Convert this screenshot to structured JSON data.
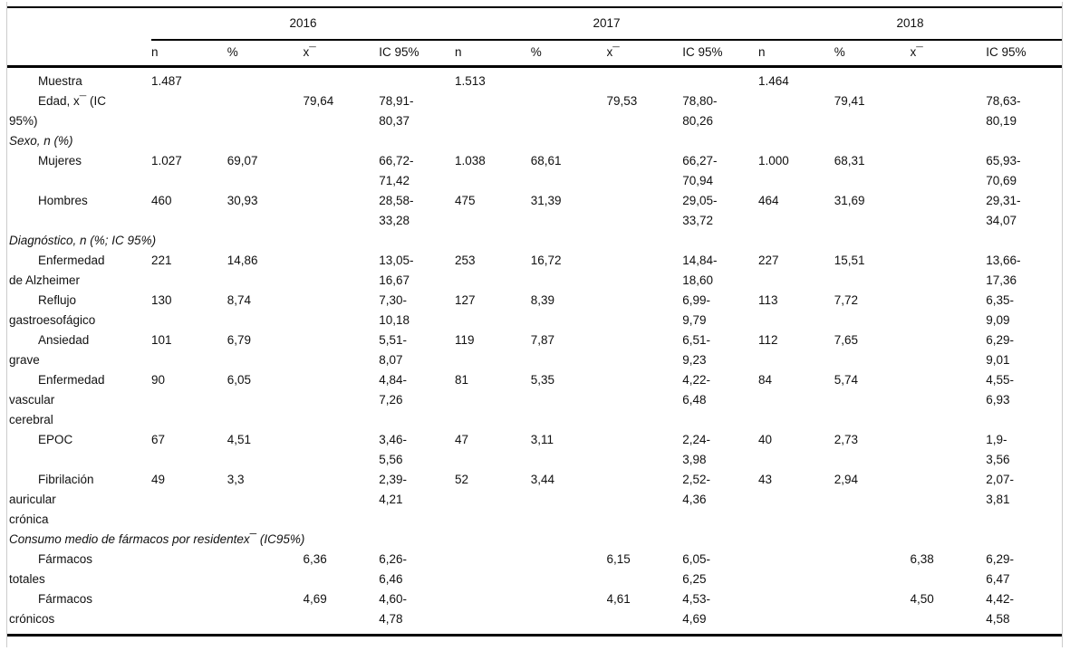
{
  "table": {
    "year_groups": [
      "2016",
      "2017",
      "2018"
    ],
    "sub_columns": [
      "n",
      "%",
      "x¯",
      "IC 95%"
    ],
    "rows": [
      {
        "type": "data",
        "label": "Muestra",
        "cells": [
          "1.487",
          "",
          "",
          "",
          "1.513",
          "",
          "",
          "",
          "1.464",
          "",
          "",
          ""
        ]
      },
      {
        "type": "data",
        "label": "Edad, x¯ (IC\n95%)",
        "cells": [
          "",
          "",
          "79,64",
          "78,91-\n80,37",
          "",
          "",
          "79,53",
          "78,80-\n80,26",
          "",
          "79,41",
          "",
          "78,63-\n80,19"
        ]
      },
      {
        "type": "section",
        "label": "Sexo, n (%)"
      },
      {
        "type": "data",
        "label": "Mujeres",
        "cells": [
          "1.027",
          "69,07",
          "",
          "66,72-\n71,42",
          "1.038",
          "68,61",
          "",
          "66,27-\n70,94",
          "1.000",
          "68,31",
          "",
          "65,93-\n70,69"
        ]
      },
      {
        "type": "data",
        "label": "Hombres",
        "cells": [
          "460",
          "30,93",
          "",
          "28,58-\n33,28",
          "475",
          "31,39",
          "",
          "29,05-\n33,72",
          "464",
          "31,69",
          "",
          "29,31-\n34,07"
        ]
      },
      {
        "type": "section",
        "label": "Diagnóstico, n (%; IC 95%)"
      },
      {
        "type": "data",
        "label": "Enfermedad\nde Alzheimer",
        "cells": [
          "221",
          "14,86",
          "",
          "13,05-\n16,67",
          "253",
          "16,72",
          "",
          "14,84-\n18,60",
          "227",
          "15,51",
          "",
          "13,66-\n17,36"
        ]
      },
      {
        "type": "data",
        "label": "Reflujo\ngastroesofágico",
        "cells": [
          "130",
          "8,74",
          "",
          "7,30-\n10,18",
          "127",
          "8,39",
          "",
          "6,99-\n9,79",
          "113",
          "7,72",
          "",
          "6,35-\n9,09"
        ]
      },
      {
        "type": "data",
        "label": "Ansiedad\ngrave",
        "cells": [
          "101",
          "6,79",
          "",
          "5,51-\n8,07",
          "119",
          "7,87",
          "",
          "6,51-\n9,23",
          "112",
          "7,65",
          "",
          "6,29-\n9,01"
        ]
      },
      {
        "type": "data",
        "label": "Enfermedad\nvascular\ncerebral",
        "cells": [
          "90",
          "6,05",
          "",
          "4,84-\n7,26",
          "81",
          "5,35",
          "",
          "4,22-\n6,48",
          "84",
          "5,74",
          "",
          "4,55-\n6,93"
        ]
      },
      {
        "type": "data",
        "label": "EPOC",
        "cells": [
          "67",
          "4,51",
          "",
          "3,46-\n5,56",
          "47",
          "3,11",
          "",
          "2,24-\n3,98",
          "40",
          "2,73",
          "",
          "1,9-\n3,56"
        ]
      },
      {
        "type": "data",
        "label": "Fibrilación\nauricular\ncrónica",
        "cells": [
          "49",
          "3,3",
          "",
          "2,39-\n4,21",
          "52",
          "3,44",
          "",
          "2,52-\n4,36",
          "43",
          "2,94",
          "",
          "2,07-\n3,81"
        ]
      },
      {
        "type": "section",
        "label": "Consumo medio de fármacos por residentex¯ (IC95%)"
      },
      {
        "type": "data",
        "label": "Fármacos\ntotales",
        "cells": [
          "",
          "",
          "6,36",
          "6,26-\n6,46",
          "",
          "",
          "6,15",
          "6,05-\n6,25",
          "",
          "",
          "6,38",
          "6,29-\n6,47"
        ]
      },
      {
        "type": "data",
        "label": "Fármacos\ncrónicos",
        "cells": [
          "",
          "",
          "4,69",
          "4,60-\n4,78",
          "",
          "",
          "4,61",
          "4,53-\n4,69",
          "",
          "",
          "4,50",
          "4,42-\n4,58"
        ]
      }
    ]
  }
}
